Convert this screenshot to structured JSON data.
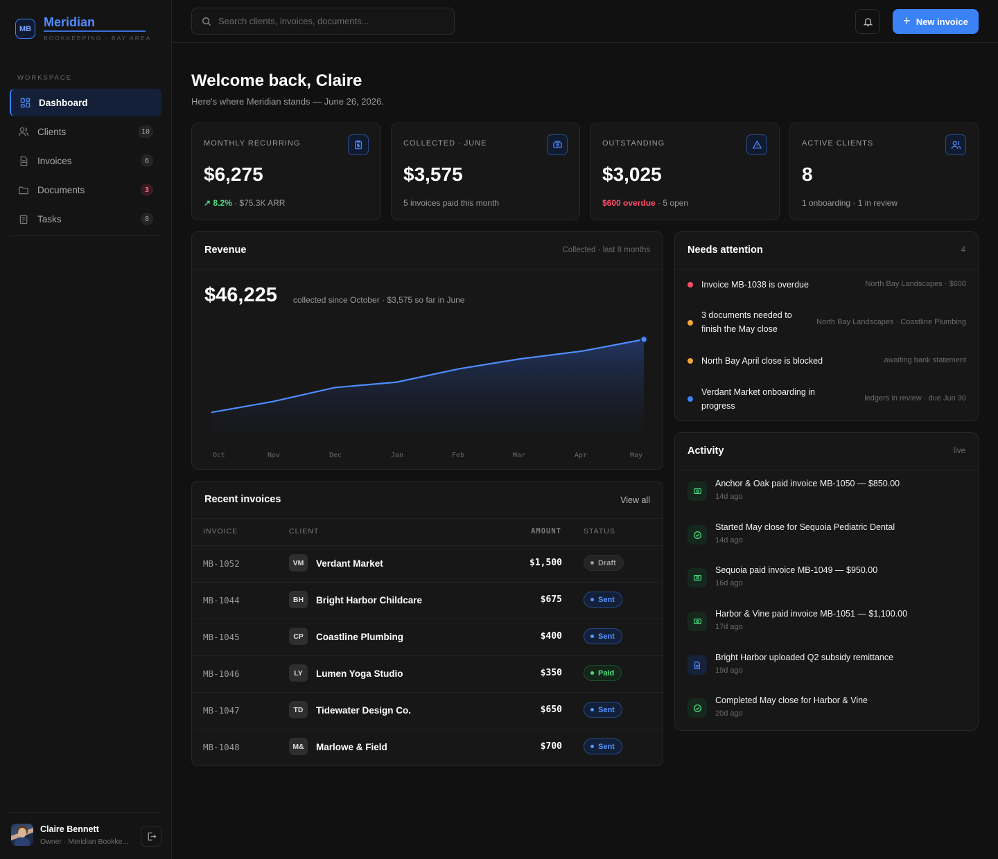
{
  "brand": {
    "logo": "MB",
    "name": "Meridian",
    "subtitle": "BOOKKEEPING · BAY AREA"
  },
  "sidebar": {
    "section": "WORKSPACE",
    "items": [
      {
        "label": "Dashboard",
        "icon": "grid-icon",
        "badge": ""
      },
      {
        "label": "Clients",
        "icon": "users-icon",
        "badge": "10"
      },
      {
        "label": "Invoices",
        "icon": "file-icon",
        "badge": "6"
      },
      {
        "label": "Documents",
        "icon": "folder-icon",
        "badge": "3"
      },
      {
        "label": "Tasks",
        "icon": "clipboard-icon",
        "badge": "8"
      }
    ],
    "user": {
      "name": "Claire Bennett",
      "role": "Owner · Meridian Bookke..."
    }
  },
  "topbar": {
    "search_placeholder": "Search clients, invoices, documents...",
    "new_button": "New invoice"
  },
  "header": {
    "title": "Welcome back, Claire",
    "subtitle": "Here's where Meridian stands — June 26, 2026."
  },
  "stats": [
    {
      "label": "MONTHLY RECURRING",
      "value": "$6,275",
      "foot_hl": "8.2%",
      "foot": " · $75.3K ARR"
    },
    {
      "label": "COLLECTED · JUNE",
      "value": "$3,575",
      "foot_hl": "",
      "foot": "5 invoices paid this month"
    },
    {
      "label": "OUTSTANDING",
      "value": "$3,025",
      "foot_hl": "$600 overdue",
      "foot": " · 5 open"
    },
    {
      "label": "ACTIVE CLIENTS",
      "value": "8",
      "foot_hl": "",
      "foot": "1 onboarding · 1 in review"
    }
  ],
  "revenue": {
    "title": "Revenue",
    "meta": "Collected · last 8 months",
    "total": "$46,225",
    "sub": "collected since October · $3,575 so far in June",
    "chart_data": {
      "type": "area",
      "categories": [
        "Oct",
        "Nov",
        "Dec",
        "Jan",
        "Feb",
        "Mar",
        "Apr",
        "May"
      ],
      "values": [
        0.06,
        0.2,
        0.38,
        0.45,
        0.62,
        0.75,
        0.85,
        1.0
      ],
      "color": "#4f8cff"
    }
  },
  "attention": {
    "title": "Needs attention",
    "count": "4",
    "items": [
      {
        "text": "Invoice MB-1038 is overdue",
        "meta": "North Bay Landscapes · $600",
        "color": "#ff4d6a"
      },
      {
        "text": "3 documents needed to",
        "text2": "finish the May close",
        "meta": "North Bay Landscapes · Coastline Plumbing",
        "color": "#f5a43a"
      },
      {
        "text": "North Bay April close is blocked",
        "meta": "awaiting bank statement",
        "color": "#f5a43a"
      },
      {
        "text": "Verdant Market onboarding in",
        "text2": "progress",
        "meta": "ledgers in review · due Jun 30",
        "color": "#3b82f6"
      }
    ]
  },
  "activity": {
    "title": "Activity",
    "meta": "live",
    "items": [
      {
        "text": "Anchor & Oak paid invoice MB-1050 — $850.00",
        "time": "14d ago",
        "icon": "cash-icon",
        "tone": "g"
      },
      {
        "text": "Started May close for Sequoia Pediatric Dental",
        "time": "14d ago",
        "icon": "check-circle-icon",
        "tone": "g"
      },
      {
        "text": "Sequoia paid invoice MB-1049 — $950.00",
        "time": "16d ago",
        "icon": "cash-icon",
        "tone": "g"
      },
      {
        "text": "Harbor & Vine paid invoice MB-1051 — $1,100.00",
        "time": "17d ago",
        "icon": "cash-icon",
        "tone": "g"
      },
      {
        "text": "Bright Harbor uploaded Q2 subsidy remittance",
        "time": "19d ago",
        "icon": "document-icon",
        "tone": "b"
      },
      {
        "text": "Completed May close for Harbor & Vine",
        "time": "20d ago",
        "icon": "check-circle-icon",
        "tone": "g"
      }
    ]
  },
  "invoices": {
    "title": "Recent invoices",
    "view_all": "View all",
    "columns": [
      "INVOICE",
      "CLIENT",
      "AMOUNT",
      "STATUS"
    ],
    "rows": [
      {
        "id": "MB-1052",
        "initials": "VM",
        "client": "Verdant Market",
        "amount": "$1,500",
        "status": "Draft",
        "tone": "draft"
      },
      {
        "id": "MB-1044",
        "initials": "BH",
        "client": "Bright Harbor Childcare",
        "amount": "$675",
        "status": "Sent",
        "tone": "sent"
      },
      {
        "id": "MB-1045",
        "initials": "CP",
        "client": "Coastline Plumbing",
        "amount": "$400",
        "status": "Sent",
        "tone": "sent"
      },
      {
        "id": "MB-1046",
        "initials": "LY",
        "client": "Lumen Yoga Studio",
        "amount": "$350",
        "status": "Paid",
        "tone": "paid"
      },
      {
        "id": "MB-1047",
        "initials": "TD",
        "client": "Tidewater Design Co.",
        "amount": "$650",
        "status": "Sent",
        "tone": "sent"
      },
      {
        "id": "MB-1048",
        "initials": "M&",
        "client": "Marlowe & Field",
        "amount": "$700",
        "status": "Sent",
        "tone": "sent"
      }
    ]
  }
}
